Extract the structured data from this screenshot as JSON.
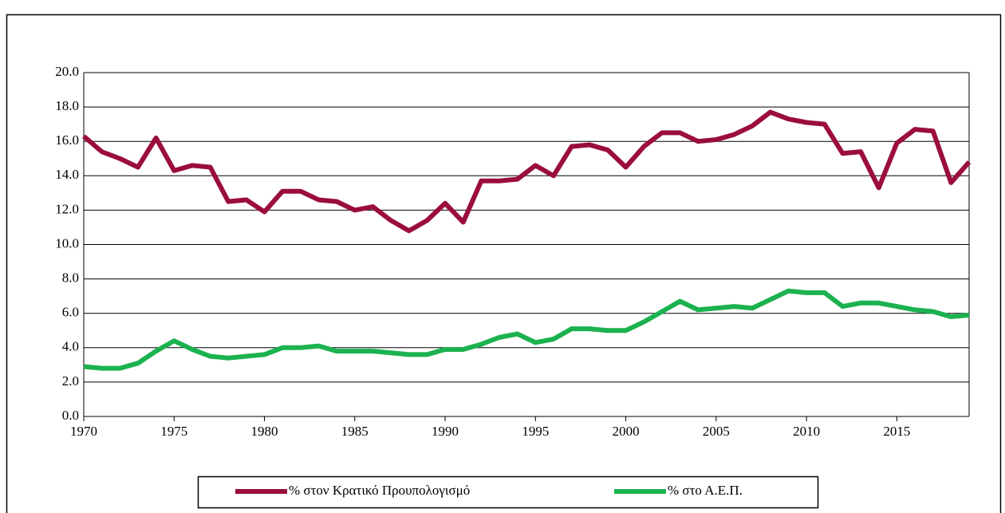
{
  "chart_data": {
    "type": "line",
    "x": [
      1970,
      1971,
      1972,
      1973,
      1974,
      1975,
      1976,
      1977,
      1978,
      1979,
      1980,
      1981,
      1982,
      1983,
      1984,
      1985,
      1986,
      1987,
      1988,
      1989,
      1990,
      1991,
      1992,
      1993,
      1994,
      1995,
      1996,
      1997,
      1998,
      1999,
      2000,
      2001,
      2002,
      2003,
      2004,
      2005,
      2006,
      2007,
      2008,
      2009,
      2010,
      2011,
      2012,
      2013,
      2014,
      2015,
      2016,
      2017,
      2018,
      2019
    ],
    "series": [
      {
        "name": "% στον Κρατικό Προυπολογισμό",
        "color": "#9b0d3f",
        "values": [
          16.3,
          15.4,
          15.0,
          14.5,
          16.2,
          14.3,
          14.6,
          14.5,
          12.5,
          12.6,
          11.9,
          13.1,
          13.1,
          12.6,
          12.5,
          12.0,
          12.2,
          11.4,
          10.8,
          11.4,
          12.4,
          11.3,
          13.7,
          13.7,
          13.8,
          14.6,
          14.0,
          15.7,
          15.8,
          15.5,
          14.5,
          15.7,
          16.5,
          16.5,
          16.0,
          16.1,
          16.4,
          16.9,
          17.7,
          17.3,
          17.1,
          17.0,
          15.3,
          15.4,
          13.3,
          15.9,
          16.7,
          16.6,
          13.6,
          14.8
        ]
      },
      {
        "name": "% στο Α.Ε.Π.",
        "color": "#1bb24f",
        "values": [
          2.9,
          2.8,
          2.8,
          3.1,
          3.8,
          4.4,
          3.9,
          3.5,
          3.4,
          3.5,
          3.6,
          4.0,
          4.0,
          4.1,
          3.8,
          3.8,
          3.8,
          3.7,
          3.6,
          3.6,
          3.9,
          3.9,
          4.2,
          4.6,
          4.8,
          4.3,
          4.5,
          5.1,
          5.1,
          5.0,
          5.0,
          5.5,
          6.1,
          6.7,
          6.2,
          6.3,
          6.4,
          6.3,
          6.8,
          7.3,
          7.2,
          7.2,
          6.4,
          6.6,
          6.6,
          6.4,
          6.2,
          6.1,
          5.8,
          5.9
        ]
      }
    ],
    "xlim": [
      1970,
      2019
    ],
    "xticks": [
      1970,
      1975,
      1980,
      1985,
      1990,
      1995,
      2000,
      2005,
      2010,
      2015
    ],
    "ylim": [
      0,
      20
    ],
    "yticks": [
      {
        "value": 0,
        "label": "0.0"
      },
      {
        "value": 2,
        "label": "2.0"
      },
      {
        "value": 4,
        "label": "4.0"
      },
      {
        "value": 6,
        "label": "6.0"
      },
      {
        "value": 8,
        "label": "8.0"
      },
      {
        "value": 10,
        "label": "10.0"
      },
      {
        "value": 12,
        "label": "12.0"
      },
      {
        "value": 14,
        "label": "14.0"
      },
      {
        "value": 16,
        "label": "16.0"
      },
      {
        "value": 18,
        "label": "18.0"
      },
      {
        "value": 20,
        "label": "20.0"
      }
    ],
    "grid": true,
    "legend": "bottom"
  }
}
